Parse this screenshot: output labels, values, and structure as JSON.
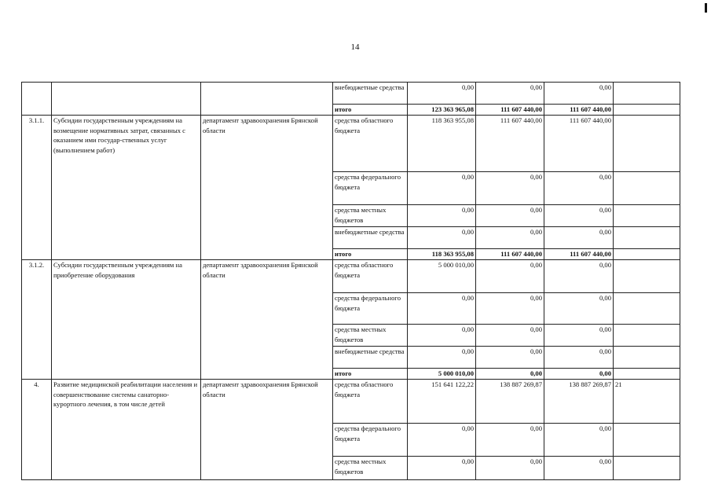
{
  "page_number": "14",
  "carryover": {
    "rows": [
      {
        "source": "внебюджетные средства",
        "values": [
          "0,00",
          "0,00",
          "0,00"
        ]
      },
      {
        "source": "итого",
        "values": [
          "123 363 965,08",
          "111 607 440,00",
          "111 607 440,00"
        ],
        "total": true
      }
    ]
  },
  "sections": [
    {
      "number": "3.1.1.",
      "name": "Субсидии государственным учреждениям на возмещение нормативных затрат, связанных с оказанием ими государ-ственных услуг (выполнением работ)",
      "executor": "департамент здравоохранения Брянской области",
      "rows": [
        {
          "source": "средства областного бюджета",
          "values": [
            "118 363 955,08",
            "111 607 440,00",
            "111 607 440,00"
          ],
          "extra": ""
        },
        {
          "source": "средства федерального бюджета",
          "values": [
            "0,00",
            "0,00",
            "0,00"
          ],
          "extra": ""
        },
        {
          "source": "средства местных бюджетов",
          "values": [
            "0,00",
            "0,00",
            "0,00"
          ],
          "extra": ""
        },
        {
          "source": "внебюджетные средства",
          "values": [
            "0,00",
            "0,00",
            "0,00"
          ],
          "extra": ""
        },
        {
          "source": "итого",
          "values": [
            "118 363 955,08",
            "111 607 440,00",
            "111 607 440,00"
          ],
          "extra": "",
          "total": true
        }
      ]
    },
    {
      "number": "3.1.2.",
      "name": "Субсидии государственным учреждениям на приобретение оборудования",
      "executor": "департамент здравоохранения Брянской области",
      "rows": [
        {
          "source": "средства областного бюджета",
          "values": [
            "5 000 010,00",
            "0,00",
            "0,00"
          ],
          "extra": ""
        },
        {
          "source": "средства федерального бюджета",
          "values": [
            "0,00",
            "0,00",
            "0,00"
          ],
          "extra": ""
        },
        {
          "source": "средства местных бюджетов",
          "values": [
            "0,00",
            "0,00",
            "0,00"
          ],
          "extra": ""
        },
        {
          "source": "внебюджетные средства",
          "values": [
            "0,00",
            "0,00",
            "0,00"
          ],
          "extra": ""
        },
        {
          "source": "итого",
          "values": [
            "5 000 010,00",
            "0,00",
            "0,00"
          ],
          "extra": "",
          "total": true
        }
      ]
    },
    {
      "number": "4.",
      "name": "Развитие медицинской реабилитации населения и совершенствование системы санаторно-курортного лечения, в том числе детей",
      "executor": "департамент здравоохранения Брянской области",
      "rows": [
        {
          "source": "средства областного бюджета",
          "values": [
            "151 641 122,22",
            "138 887 269,87",
            "138 887 269,87"
          ],
          "extra": "21"
        },
        {
          "source": "средства федерального бюджета",
          "values": [
            "0,00",
            "0,00",
            "0,00"
          ],
          "extra": ""
        },
        {
          "source": "средства местных бюджетов",
          "values": [
            "0,00",
            "0,00",
            "0,00"
          ],
          "extra": ""
        }
      ]
    }
  ]
}
